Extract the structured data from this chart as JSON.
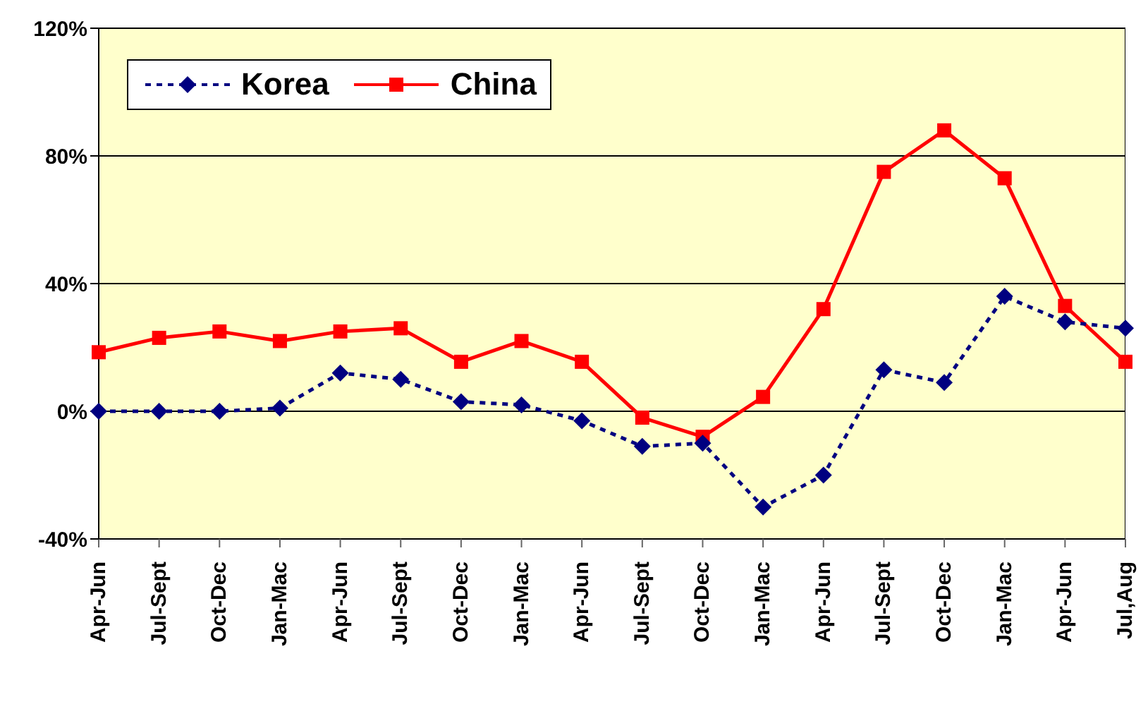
{
  "chart_data": {
    "type": "line",
    "categories": [
      "Apr-Jun",
      "Jul-Sept",
      "Oct-Dec",
      "Jan-Mac",
      "Apr-Jun",
      "Jul-Sept",
      "Oct-Dec",
      "Jan-Mac",
      "Apr-Jun",
      "Jul-Sept",
      "Oct-Dec",
      "Jan-Mac",
      "Apr-Jun",
      "Jul-Sept",
      "Oct-Dec",
      "Jan-Mac",
      "Apr-Jun",
      "Jul,Aug"
    ],
    "series": [
      {
        "name": "Korea",
        "color": "#000080",
        "marker": "diamond",
        "line_style": "dashed",
        "values": [
          0,
          0,
          0,
          1,
          12,
          10,
          3,
          2,
          -3,
          -11,
          -10,
          -30,
          -20,
          13,
          9,
          36,
          28,
          26
        ]
      },
      {
        "name": "China",
        "color": "#ff0000",
        "marker": "square",
        "line_style": "solid",
        "values": [
          18.5,
          23,
          25,
          22,
          25,
          26,
          15.5,
          22,
          15.5,
          -2,
          -8,
          4.5,
          32,
          75,
          88,
          73,
          33,
          15.5
        ]
      }
    ],
    "ylim": [
      -40,
      120
    ],
    "yticks": [
      {
        "value": -40,
        "label": "-40%"
      },
      {
        "value": 0,
        "label": "0%"
      },
      {
        "value": 40,
        "label": "40%"
      },
      {
        "value": 80,
        "label": "80%"
      },
      {
        "value": 120,
        "label": "120%"
      }
    ],
    "grid": "y",
    "legend": "top left"
  }
}
